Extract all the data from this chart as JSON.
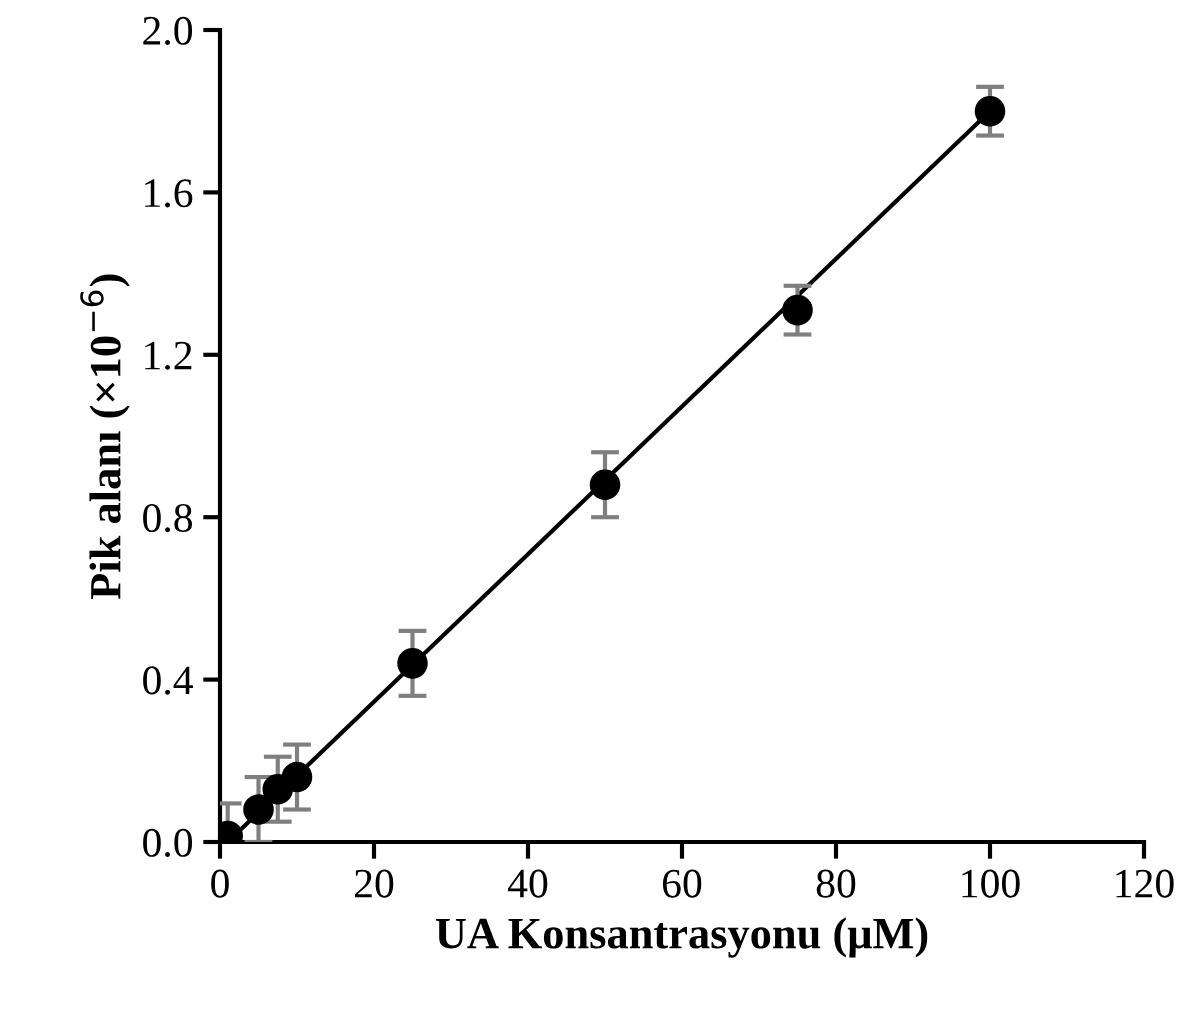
{
  "chart_data": {
    "type": "scatter",
    "xlabel": "UA Konsantrasyonu (μM)",
    "ylabel": "Pik alanı (×10$^{−6}$)",
    "xlim": [
      0,
      120
    ],
    "xticks": [
      0,
      20,
      40,
      60,
      80,
      100,
      120
    ],
    "ylim": [
      0,
      2.0
    ],
    "yticks": [
      {
        "value": 0,
        "label": "0.0"
      },
      0.4,
      0.8,
      1.2,
      1.6,
      {
        "value": 2.0,
        "label": "2.0"
      }
    ],
    "grid": false,
    "series": [
      {
        "marker": "circle",
        "color": "#000000",
        "x": [
          1,
          5,
          7.5,
          10,
          25,
          50,
          75,
          100
        ],
        "values": [
          0.015,
          0.08,
          0.13,
          0.16,
          0.44,
          0.88,
          1.31,
          1.8
        ],
        "errors": [
          0.08,
          0.08,
          0.08,
          0.08,
          0.08,
          0.08,
          0.06,
          0.06
        ]
      },
      {
        "type": "line",
        "color": "#000000",
        "x": [
          1,
          100
        ],
        "values": [
          0.0,
          1.8
        ],
        "line_style": "solid",
        "marker": "none"
      }
    ]
  }
}
